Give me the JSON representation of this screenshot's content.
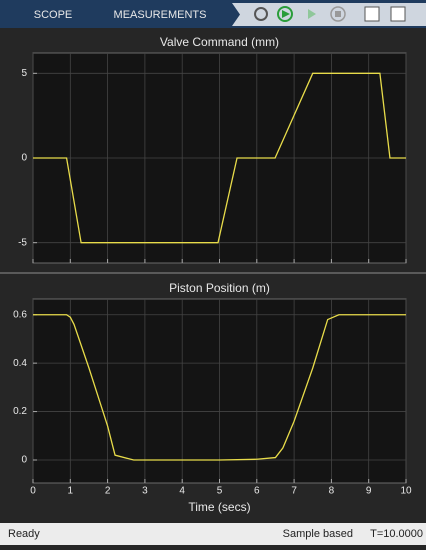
{
  "toolbar": {
    "tabs": [
      "SCOPE",
      "MEASUREMENTS"
    ]
  },
  "status_bar": {
    "left": "Ready",
    "mode": "Sample based",
    "time": "T=10.0000"
  },
  "chart_data": [
    {
      "type": "line",
      "title": "Valve Command (mm)",
      "color": "#e8dc4a",
      "x": [
        0,
        0.9,
        1.29,
        4.96,
        5.47,
        6.49,
        7.5,
        9.3,
        9.57,
        10
      ],
      "values": [
        0,
        0,
        -5,
        -5,
        0,
        0,
        5,
        5,
        0,
        0
      ],
      "xlim": [
        0,
        10
      ],
      "xticks": [
        0,
        1,
        2,
        3,
        4,
        5,
        6,
        7,
        8,
        9,
        10
      ],
      "show_xtick_labels": false,
      "ylim": [
        -6.2,
        6.2
      ],
      "yticks": [
        -5,
        0,
        5
      ],
      "grid": true
    },
    {
      "type": "line",
      "title": "Piston Position (m)",
      "xlabel": "Time (secs)",
      "color": "#e8dc4a",
      "x": [
        0,
        0.9,
        1.0,
        1.1,
        1.5,
        2.0,
        2.2,
        2.7,
        5,
        6.0,
        6.5,
        6.7,
        7.0,
        7.5,
        7.9,
        8.2,
        10
      ],
      "values": [
        0.6,
        0.6,
        0.59,
        0.56,
        0.38,
        0.14,
        0.02,
        0,
        0,
        0.003,
        0.01,
        0.05,
        0.16,
        0.38,
        0.58,
        0.6,
        0.6
      ],
      "xlim": [
        0,
        10
      ],
      "xticks": [
        0,
        1,
        2,
        3,
        4,
        5,
        6,
        7,
        8,
        9,
        10
      ],
      "show_xtick_labels": true,
      "ylim": [
        -0.095,
        0.665
      ],
      "yticks": [
        0,
        0.2,
        0.4,
        0.6
      ],
      "grid": true
    }
  ]
}
